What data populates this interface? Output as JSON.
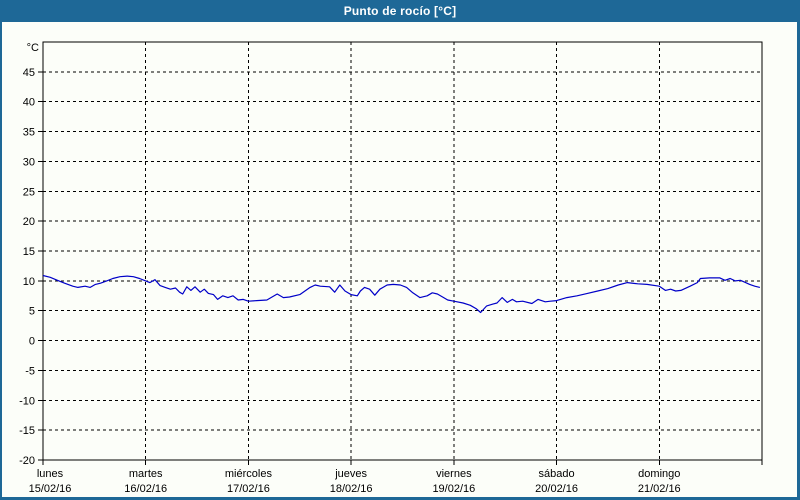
{
  "title": "Punto de rocío [°C]",
  "window": {
    "titlebar_bg": "#1e6897",
    "titlebar_text_color": "#ffffff",
    "frame_color": "#1e6897",
    "background": "#fcfef9"
  },
  "chart_data": {
    "type": "line",
    "title": "Punto de rocío [°C]",
    "unit_label": "°C",
    "ylim": [
      -20,
      50
    ],
    "ytick_step": 5,
    "ytick_labels": [
      "45",
      "40",
      "35",
      "30",
      "25",
      "20",
      "15",
      "10",
      "5",
      "0",
      "-5",
      "-10",
      "-15",
      "-20"
    ],
    "x_range_days": [
      0,
      7
    ],
    "grid": "dashed",
    "legend": "none",
    "axis_color": "#000000",
    "line_color": "#0000c8",
    "x_days": [
      {
        "name": "lunes",
        "date": "15/02/16"
      },
      {
        "name": "martes",
        "date": "16/02/16"
      },
      {
        "name": "miércoles",
        "date": "17/02/16"
      },
      {
        "name": "jueves",
        "date": "18/02/16"
      },
      {
        "name": "viernes",
        "date": "19/02/16"
      },
      {
        "name": "sábado",
        "date": "20/02/16"
      },
      {
        "name": "domingo",
        "date": "21/02/16"
      }
    ],
    "series": [
      {
        "name": "Punto de rocío",
        "points": [
          [
            0,
            10.9
          ],
          [
            0.07,
            10.6
          ],
          [
            0.14,
            10.1
          ],
          [
            0.21,
            9.6
          ],
          [
            0.29,
            9.1
          ],
          [
            0.34,
            8.9
          ],
          [
            0.41,
            9.1
          ],
          [
            0.46,
            8.9
          ],
          [
            0.51,
            9.4
          ],
          [
            0.56,
            9.6
          ],
          [
            0.62,
            10.0
          ],
          [
            0.68,
            10.4
          ],
          [
            0.75,
            10.7
          ],
          [
            0.82,
            10.8
          ],
          [
            0.88,
            10.7
          ],
          [
            0.94,
            10.4
          ],
          [
            1.0,
            10.0
          ],
          [
            1.04,
            9.7
          ],
          [
            1.09,
            10.2
          ],
          [
            1.14,
            9.2
          ],
          [
            1.19,
            8.9
          ],
          [
            1.24,
            8.6
          ],
          [
            1.29,
            8.8
          ],
          [
            1.33,
            8.1
          ],
          [
            1.36,
            7.8
          ],
          [
            1.4,
            9.0
          ],
          [
            1.44,
            8.4
          ],
          [
            1.48,
            9.0
          ],
          [
            1.53,
            8.1
          ],
          [
            1.57,
            8.6
          ],
          [
            1.61,
            7.9
          ],
          [
            1.66,
            7.7
          ],
          [
            1.7,
            6.9
          ],
          [
            1.75,
            7.5
          ],
          [
            1.8,
            7.2
          ],
          [
            1.85,
            7.5
          ],
          [
            1.9,
            6.8
          ],
          [
            1.95,
            6.9
          ],
          [
            2.0,
            6.6
          ],
          [
            2.08,
            6.7
          ],
          [
            2.18,
            6.8
          ],
          [
            2.28,
            7.8
          ],
          [
            2.34,
            7.2
          ],
          [
            2.4,
            7.3
          ],
          [
            2.5,
            7.7
          ],
          [
            2.6,
            8.9
          ],
          [
            2.65,
            9.3
          ],
          [
            2.7,
            9.1
          ],
          [
            2.79,
            9.0
          ],
          [
            2.84,
            8.1
          ],
          [
            2.89,
            9.3
          ],
          [
            2.94,
            8.3
          ],
          [
            3.0,
            7.7
          ],
          [
            3.06,
            7.5
          ],
          [
            3.09,
            8.3
          ],
          [
            3.13,
            8.9
          ],
          [
            3.18,
            8.6
          ],
          [
            3.23,
            7.6
          ],
          [
            3.28,
            8.6
          ],
          [
            3.35,
            9.3
          ],
          [
            3.41,
            9.4
          ],
          [
            3.48,
            9.3
          ],
          [
            3.54,
            8.9
          ],
          [
            3.6,
            8.0
          ],
          [
            3.67,
            7.2
          ],
          [
            3.74,
            7.5
          ],
          [
            3.79,
            8.0
          ],
          [
            3.84,
            7.8
          ],
          [
            3.89,
            7.3
          ],
          [
            3.94,
            6.8
          ],
          [
            4.0,
            6.6
          ],
          [
            4.09,
            6.3
          ],
          [
            4.16,
            5.9
          ],
          [
            4.22,
            5.3
          ],
          [
            4.26,
            4.7
          ],
          [
            4.32,
            5.8
          ],
          [
            4.38,
            6.1
          ],
          [
            4.42,
            6.3
          ],
          [
            4.47,
            7.2
          ],
          [
            4.52,
            6.4
          ],
          [
            4.57,
            6.9
          ],
          [
            4.61,
            6.5
          ],
          [
            4.67,
            6.6
          ],
          [
            4.76,
            6.2
          ],
          [
            4.82,
            6.9
          ],
          [
            4.89,
            6.5
          ],
          [
            4.94,
            6.6
          ],
          [
            5.0,
            6.7
          ],
          [
            5.1,
            7.2
          ],
          [
            5.2,
            7.5
          ],
          [
            5.3,
            7.9
          ],
          [
            5.4,
            8.3
          ],
          [
            5.5,
            8.7
          ],
          [
            5.6,
            9.3
          ],
          [
            5.69,
            9.7
          ],
          [
            5.79,
            9.5
          ],
          [
            5.88,
            9.4
          ],
          [
            6.0,
            9.1
          ],
          [
            6.06,
            8.4
          ],
          [
            6.11,
            8.6
          ],
          [
            6.16,
            8.3
          ],
          [
            6.21,
            8.4
          ],
          [
            6.3,
            9.1
          ],
          [
            6.37,
            9.7
          ],
          [
            6.4,
            10.4
          ],
          [
            6.49,
            10.5
          ],
          [
            6.59,
            10.5
          ],
          [
            6.64,
            10.1
          ],
          [
            6.69,
            10.4
          ],
          [
            6.74,
            10.0
          ],
          [
            6.79,
            10.1
          ],
          [
            6.83,
            9.8
          ],
          [
            6.88,
            9.4
          ],
          [
            6.93,
            9.1
          ],
          [
            6.98,
            8.9
          ]
        ]
      }
    ]
  }
}
